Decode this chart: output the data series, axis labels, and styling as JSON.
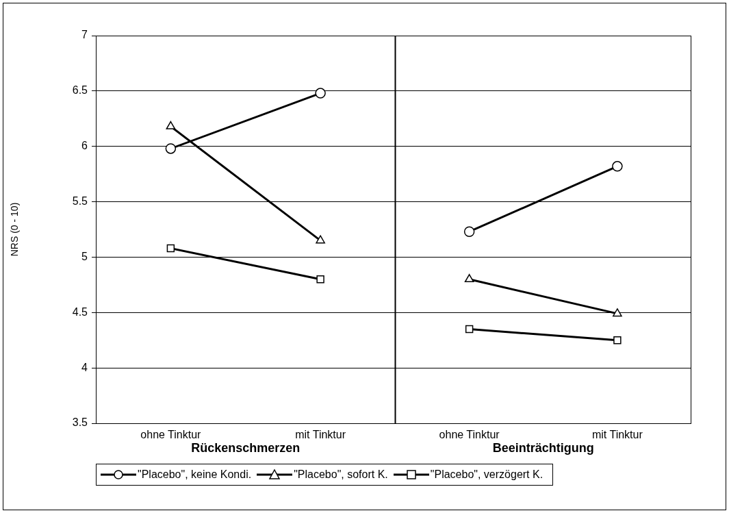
{
  "chart_data": [
    {
      "type": "line",
      "ylabel": "NRS (0 - 10)",
      "xlabel": "Rückenschmerzen",
      "categories": [
        "ohne Tinktur",
        "mit Tinktur"
      ],
      "ylim": [
        3.5,
        7
      ],
      "yticks": [
        3.5,
        4,
        4.5,
        5,
        5.5,
        6,
        6.5,
        7
      ],
      "grid": "y",
      "legend": "bottom",
      "series": [
        {
          "name": "\"Placebo\", keine Kondi.",
          "color": "#000000",
          "marker": "circle",
          "values": [
            5.98,
            6.48
          ]
        },
        {
          "name": "\"Placebo\", sofort K.",
          "color": "#000000",
          "marker": "triangle",
          "values": [
            6.18,
            5.15
          ]
        },
        {
          "name": "\"Placebo\", verzögert K.",
          "color": "#000000",
          "marker": "square",
          "values": [
            5.08,
            4.8
          ]
        }
      ]
    },
    {
      "type": "line",
      "xlabel": "Beeinträchtigung",
      "categories": [
        "ohne Tinktur",
        "mit Tinktur"
      ],
      "ylim": [
        3.5,
        7
      ],
      "yticks": [
        3.5,
        4,
        4.5,
        5,
        5.5,
        6,
        6.5,
        7
      ],
      "grid": "y",
      "tick_labels": "x",
      "series": [
        {
          "color": "#000000",
          "marker": "circle",
          "values": [
            5.23,
            5.82
          ]
        },
        {
          "color": "#000000",
          "marker": "triangle",
          "values": [
            4.8,
            4.49
          ]
        },
        {
          "color": "#000000",
          "marker": "square",
          "values": [
            4.35,
            4.25
          ]
        }
      ]
    }
  ]
}
